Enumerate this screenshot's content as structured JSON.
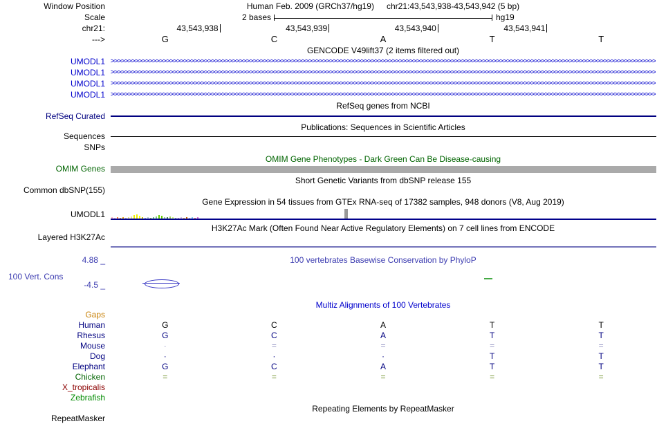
{
  "header": {
    "window_position_label": "Window Position",
    "assembly": "Human Feb. 2009 (GRCh37/hg19)",
    "position": "chr21:43,543,938-43,543,942 (5 bp)",
    "scale_label": "Scale",
    "scale_text": "2 bases",
    "scale_right": "hg19",
    "chrom_label": "chr21:",
    "strand_label": "--->",
    "coords": [
      "43,543,938",
      "43,543,939",
      "43,543,940",
      "43,543,941"
    ],
    "bases": [
      "G",
      "C",
      "A",
      "T",
      "T"
    ]
  },
  "gencode": {
    "title": "GENCODE V49lift37 (2 items filtered out)",
    "gene_color": "#0000cc",
    "items": [
      "UMODL1",
      "UMODL1",
      "UMODL1",
      "UMODL1"
    ]
  },
  "refseq": {
    "title": "RefSeq genes from NCBI",
    "label": "RefSeq Curated",
    "line_color": "#000080"
  },
  "publications": {
    "title": "Publications: Sequences in Scientific Articles",
    "label": "Sequences"
  },
  "snps": {
    "label": "SNPs"
  },
  "omim": {
    "title": "OMIM Gene Phenotypes - Dark Green Can Be Disease-causing",
    "label": "OMIM Genes",
    "title_color": "#006400",
    "bar_color": "#aaaaaa"
  },
  "dbsnp": {
    "title": "Short Genetic Variants from dbSNP release 155",
    "label": "Common dbSNP(155)"
  },
  "gtex": {
    "title": "Gene Expression in 54 tissues from GTEx RNA-seq of 17382 samples, 948 donors (V8, Aug 2019)",
    "label": "UMODL1",
    "line_color": "#00008b",
    "bars": [
      {
        "c": "#ffb6c1",
        "h": 2
      },
      {
        "c": "#ffb6c1",
        "h": 1
      },
      {
        "c": "#ff8247",
        "h": 2
      },
      {
        "c": "#eead0e",
        "h": 1
      },
      {
        "c": "#eead0e",
        "h": 2
      },
      {
        "c": "#cdb79e",
        "h": 1
      },
      {
        "c": "#eee685",
        "h": 2
      },
      {
        "c": "#eee685",
        "h": 3
      },
      {
        "c": "#eeee00",
        "h": 5
      },
      {
        "c": "#eeee00",
        "h": 6
      },
      {
        "c": "#ffff00",
        "h": 4
      },
      {
        "c": "#cdcd00",
        "h": 2
      },
      {
        "c": "#8db6cd",
        "h": 1
      },
      {
        "c": "#b4cdcd",
        "h": 2
      },
      {
        "c": "#9acd32",
        "h": 1
      },
      {
        "c": "#7ccd7c",
        "h": 2
      },
      {
        "c": "#7ccd7c",
        "h": 3
      },
      {
        "c": "#66cd00",
        "h": 5
      },
      {
        "c": "#66cd00",
        "h": 4
      },
      {
        "c": "#9bcd9b",
        "h": 2
      },
      {
        "c": "#548b54",
        "h": 2
      },
      {
        "c": "#a2cd5a",
        "h": 3
      },
      {
        "c": "#caff70",
        "h": 2
      },
      {
        "c": "#8fbc8f",
        "h": 1
      },
      {
        "c": "#cd96cd",
        "h": 1
      },
      {
        "c": "#d8bfd8",
        "h": 2
      },
      {
        "c": "#ffc125",
        "h": 1
      },
      {
        "c": "#cd6600",
        "h": 2
      },
      {
        "c": "#b0c4de",
        "h": 1
      },
      {
        "c": "#87ceeb",
        "h": 2
      },
      {
        "c": "#ff7f50",
        "h": 1
      },
      {
        "c": "#da70d6",
        "h": 2
      }
    ]
  },
  "h3k27ac": {
    "title": "H3K27Ac Mark (Often Found Near Active Regulatory Elements) on 7 cell lines from ENCODE",
    "label": "Layered H3K27Ac",
    "line_color": "#7373b9"
  },
  "conservation": {
    "title": "100 vertebrates Basewise Conservation by PhyloP",
    "label": "100 Vert. Cons",
    "max_label": "4.88 _",
    "min_label": "-4.5 _",
    "color": "#3b3bb0"
  },
  "multiz": {
    "title": "Multiz Alignments of 100 Vertebrates",
    "title_color": "#0000cc",
    "rows": [
      {
        "name": "Gaps",
        "color": "#c8820a",
        "cell_color": "#c8820a",
        "cells": [
          "",
          "",
          "",
          "",
          ""
        ]
      },
      {
        "name": "Human",
        "color": "#000080",
        "cell_color": "#000000",
        "cells": [
          "G",
          "C",
          "A",
          "T",
          "T"
        ]
      },
      {
        "name": "Rhesus",
        "color": "#000080",
        "cell_color": "#000080",
        "cells": [
          "G",
          "C",
          "A",
          "T",
          "T"
        ]
      },
      {
        "name": "Mouse",
        "color": "#000080",
        "cell_color": "#9494c4",
        "cells": [
          "·",
          "=",
          "=",
          "=",
          "="
        ]
      },
      {
        "name": "Dog",
        "color": "#000080",
        "cell_color": "#000080",
        "cells": [
          "·",
          "·",
          "·",
          "T",
          "T"
        ]
      },
      {
        "name": "Elephant",
        "color": "#000080",
        "cell_color": "#000080",
        "cells": [
          "G",
          "C",
          "A",
          "T",
          "T"
        ]
      },
      {
        "name": "Chicken",
        "color": "#006400",
        "cell_color": "#6b8e23",
        "cells": [
          "=",
          "=",
          "=",
          "=",
          "="
        ]
      },
      {
        "name": "X_tropicalis",
        "color": "#8b0000",
        "cell_color": "#8b0000",
        "cells": [
          "",
          "",
          "",
          "",
          ""
        ]
      },
      {
        "name": "Zebrafish",
        "color": "#008b00",
        "cell_color": "#008b00",
        "cells": [
          "",
          "",
          "",
          "",
          ""
        ]
      }
    ]
  },
  "repeatmasker": {
    "title": "Repeating Elements by RepeatMasker",
    "label": "RepeatMasker"
  }
}
